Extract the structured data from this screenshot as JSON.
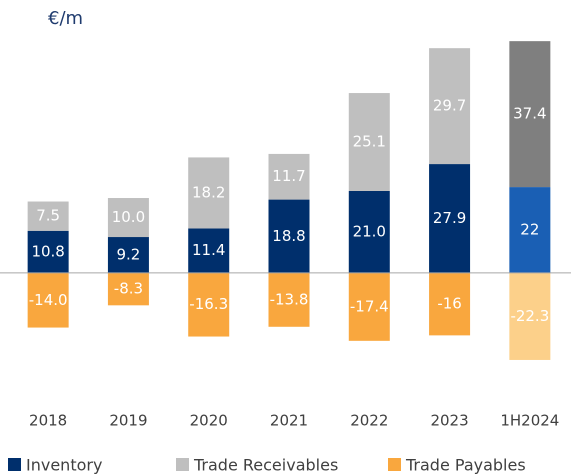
{
  "chart_data": {
    "type": "stacked-bar",
    "unit_label": "€/m",
    "categories": [
      "2018",
      "2019",
      "2020",
      "2021",
      "2022",
      "2023",
      "1H2024"
    ],
    "series": [
      {
        "name": "Inventory",
        "color": "#002f6c",
        "colors": [
          "#002f6c",
          "#002f6c",
          "#002f6c",
          "#002f6c",
          "#002f6c",
          "#002f6c",
          "#1a5fb4"
        ],
        "values": [
          10.8,
          9.2,
          11.4,
          18.8,
          21.0,
          27.9,
          22
        ],
        "value_labels": [
          "10.8",
          "9.2",
          "11.4",
          "18.8",
          "21.0",
          "27.9",
          "22"
        ]
      },
      {
        "name": "Trade Receivables",
        "color": "#bfbfbf",
        "colors": [
          "#bfbfbf",
          "#bfbfbf",
          "#bfbfbf",
          "#bfbfbf",
          "#bfbfbf",
          "#bfbfbf",
          "#7f7f7f"
        ],
        "values": [
          7.5,
          10.0,
          18.2,
          11.7,
          25.1,
          29.7,
          37.4
        ],
        "value_labels": [
          "7.5",
          "10.0",
          "18.2",
          "11.7",
          "25.1",
          "29.7",
          "37.4"
        ]
      },
      {
        "name": "Trade Payables",
        "color": "#f9a73e",
        "colors": [
          "#f9a73e",
          "#f9a73e",
          "#f9a73e",
          "#f9a73e",
          "#f9a73e",
          "#f9a73e",
          "#fcd08a"
        ],
        "values": [
          -14.0,
          -8.3,
          -16.3,
          -13.8,
          -17.4,
          -16,
          -22.3
        ],
        "value_labels": [
          "-14.0",
          "-8.3",
          "-16.3",
          "-13.8",
          "-17.4",
          "-16",
          "-22.3"
        ]
      }
    ],
    "ylim": [
      -30,
      62
    ],
    "legend": "bottom"
  }
}
